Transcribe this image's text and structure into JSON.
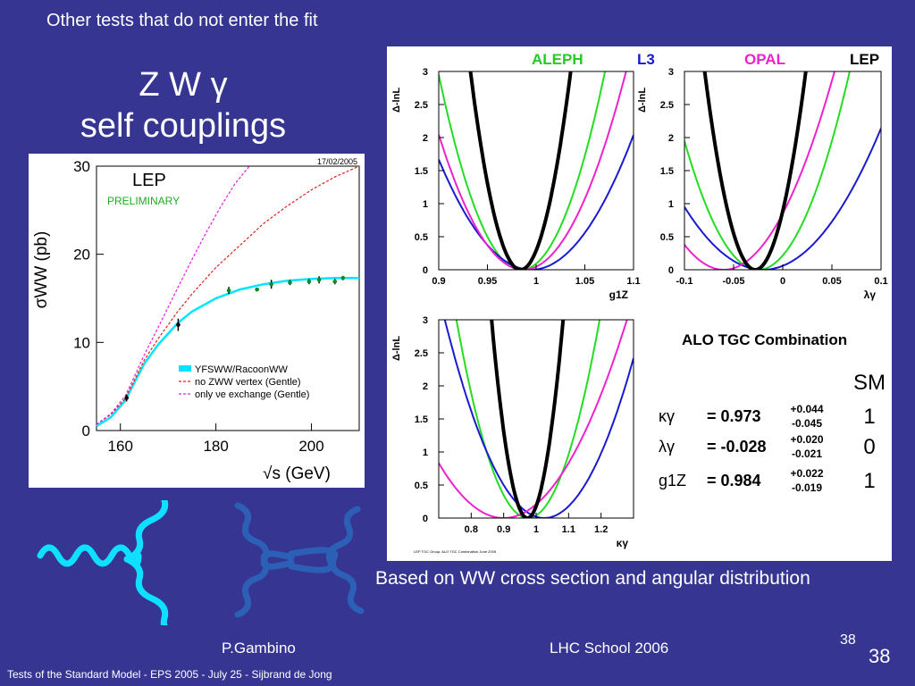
{
  "slide": {
    "top_note": "Other tests that do not enter the fit",
    "title_line1": "Z W γ",
    "title_line2": "self couplings",
    "caption": "Based on WW cross section and angular distribution",
    "footer_left": "P.Gambino",
    "footer_mid": "LHC School 2006",
    "page_small": "38",
    "page_big": "38",
    "bottom_line": "Tests of the Standard Model - EPS 2005 - July 25 - Sijbrand de Jong",
    "background_color": "#363592"
  },
  "chart_data": [
    {
      "type": "line",
      "title": "LEP",
      "subtitle": "PRELIMINARY",
      "date": "17/02/2005",
      "xlabel": "√s (GeV)",
      "ylabel": "σWW (pb)",
      "xlim": [
        155,
        210
      ],
      "ylim": [
        0,
        30
      ],
      "xticks": [
        160,
        180,
        200
      ],
      "yticks": [
        0,
        10,
        20,
        30
      ],
      "series": [
        {
          "name": "YFSWW/RacoonWW",
          "color": "#00e5ff",
          "x": [
            155,
            158,
            161,
            163,
            165,
            168,
            170,
            172,
            175,
            180,
            185,
            190,
            195,
            200,
            205,
            210
          ],
          "y": [
            0.5,
            1.5,
            3.4,
            5.5,
            7.6,
            9.8,
            11.0,
            12.2,
            13.5,
            15.0,
            16.0,
            16.6,
            17.0,
            17.2,
            17.3,
            17.3
          ]
        },
        {
          "name": "no ZWW vertex (Gentle)",
          "color": "#e02020",
          "x": [
            155,
            158,
            161,
            163,
            165,
            168,
            170,
            172,
            175,
            180,
            185,
            190,
            195,
            200,
            205,
            210
          ],
          "y": [
            0.7,
            1.8,
            3.6,
            5.8,
            8.0,
            10.5,
            12.0,
            13.5,
            15.5,
            18.5,
            21.0,
            23.5,
            25.5,
            27.3,
            28.8,
            30.0
          ]
        },
        {
          "name": "only νe exchange (Gentle)",
          "color": "#e020e0",
          "x": [
            155,
            158,
            161,
            163,
            165,
            168,
            170,
            172,
            175,
            178,
            181,
            184,
            187
          ],
          "y": [
            0.7,
            1.9,
            3.9,
            6.2,
            8.6,
            11.8,
            14.0,
            16.2,
            19.4,
            22.5,
            25.4,
            28.0,
            30.0
          ]
        }
      ],
      "measurements": {
        "x": [
          161.3,
          172.1,
          182.7,
          188.6,
          191.6,
          195.5,
          199.5,
          201.6,
          204.9,
          206.6
        ],
        "y": [
          3.7,
          12.0,
          15.9,
          16.0,
          16.6,
          16.8,
          16.9,
          17.1,
          16.9,
          17.3
        ],
        "err": [
          0.4,
          0.7,
          0.4,
          0.2,
          0.5,
          0.3,
          0.3,
          0.4,
          0.3,
          0.25
        ]
      },
      "legend_placement": "bottom-right"
    },
    {
      "type": "line",
      "header": [
        "ALEPH",
        "L3",
        "OPAL",
        "LEP"
      ],
      "header_colors": [
        "#22cc22",
        "#1818cc",
        "#ee22cc",
        "#000000"
      ],
      "ylabel": "Δ-lnL",
      "panels": [
        {
          "id": "g1z",
          "xlabel": "g1Z",
          "xlim": [
            0.9,
            1.1
          ],
          "ylim": [
            0,
            3
          ],
          "xticks": [
            "0.9",
            "0.95",
            "1",
            "1.05",
            "1.1"
          ],
          "yticks": [
            "0",
            "0.5",
            "1",
            "1.5",
            "2",
            "2.5",
            "3"
          ],
          "series": [
            {
              "name": "ALEPH",
              "min": 0.985,
              "width": 0.035
            },
            {
              "name": "L3",
              "min": 0.995,
              "width": 0.052
            },
            {
              "name": "OPAL",
              "min": 0.987,
              "width": 0.043
            },
            {
              "name": "LEP",
              "min": 0.984,
              "width": 0.021
            }
          ]
        },
        {
          "id": "lambda",
          "xlabel": "λγ",
          "xlim": [
            -0.1,
            0.1
          ],
          "ylim": [
            0,
            3
          ],
          "xticks": [
            "-0.1",
            "-0.05",
            "0",
            "0.05",
            "0.1"
          ],
          "yticks": [
            "0",
            "0.5",
            "1",
            "1.5",
            "2",
            "2.5",
            "3"
          ],
          "series": [
            {
              "name": "ALEPH",
              "min": -0.025,
              "width": 0.038
            },
            {
              "name": "L3",
              "min": -0.02,
              "width": 0.058
            },
            {
              "name": "OPAL",
              "min": -0.06,
              "width": 0.046
            },
            {
              "name": "LEP",
              "min": -0.028,
              "width": 0.021
            }
          ]
        },
        {
          "id": "kappa",
          "xlabel": "κγ",
          "xlim": [
            0.7,
            1.3
          ],
          "ylim": [
            0,
            3
          ],
          "xticks": [
            "0.8",
            "0.9",
            "1",
            "1.1",
            "1.2"
          ],
          "yticks": [
            "0",
            "0.5",
            "1",
            "1.5",
            "2",
            "2.5",
            "3"
          ],
          "series": [
            {
              "name": "ALEPH",
              "min": 0.975,
              "width": 0.09
            },
            {
              "name": "L3",
              "min": 1.025,
              "width": 0.125
            },
            {
              "name": "OPAL",
              "min": 0.9,
              "width": 0.155
            },
            {
              "name": "LEP",
              "min": 0.973,
              "width": 0.045
            }
          ]
        }
      ],
      "footnote": "LEP TGC Group: ALO TGC Combination June 2005",
      "results": {
        "heading": "ALO TGC Combination",
        "sm_heading": "SM",
        "rows": [
          {
            "param": "κγ",
            "value": "= 0.973",
            "plus": "+0.044",
            "minus": "-0.045",
            "sm": "1"
          },
          {
            "param": "λγ",
            "value": "= -0.028",
            "plus": "+0.020",
            "minus": "-0.021",
            "sm": "0"
          },
          {
            "param": "g1Z",
            "value": "= 0.984",
            "plus": "+0.022",
            "minus": "-0.019",
            "sm": "1"
          }
        ]
      }
    }
  ]
}
